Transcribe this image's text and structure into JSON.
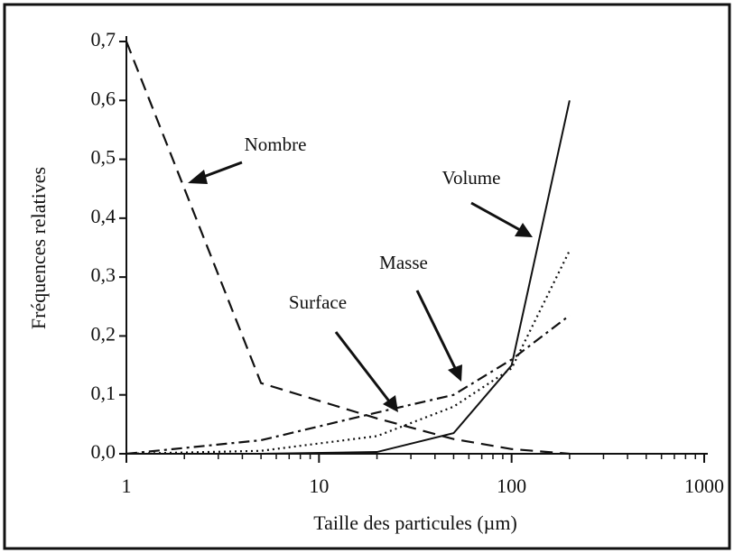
{
  "chart_data": {
    "type": "line",
    "x_label": "Taille des particules (µm)",
    "y_label": "Fréquences relatives",
    "log_x": true,
    "xlim": [
      1,
      1000
    ],
    "xticks": [
      1,
      10,
      100,
      1000
    ],
    "xminorticks": [
      2,
      3,
      4,
      5,
      6,
      7,
      8,
      9,
      20,
      30,
      40,
      50,
      60,
      70,
      80,
      90,
      200,
      300,
      400,
      500,
      600,
      700,
      800,
      900
    ],
    "ylim": [
      0,
      0.7
    ],
    "yticks": [
      {
        "value": 0,
        "label": "0,0"
      },
      {
        "value": 0.1,
        "label": "0,1"
      },
      {
        "value": 0.2,
        "label": "0,2"
      },
      {
        "value": 0.3,
        "label": "0,3"
      },
      {
        "value": 0.4,
        "label": "0,4"
      },
      {
        "value": 0.5,
        "label": "0,5"
      },
      {
        "value": 0.6,
        "label": "0,6"
      },
      {
        "value": 0.7,
        "label": "0,7"
      }
    ],
    "x": [
      1,
      5,
      20,
      50,
      100,
      200
    ],
    "series": [
      {
        "name": "Nombre",
        "color": "#111111",
        "style": "dashed",
        "values": [
          0.7,
          0.12,
          0.06,
          0.025,
          0.008,
          0
        ]
      },
      {
        "name": "Surface",
        "color": "#111111",
        "style": "dashdot",
        "values": [
          0,
          0.023,
          0.07,
          0.1,
          0.16,
          0.235
        ]
      },
      {
        "name": "Masse",
        "color": "#111111",
        "style": "dotted",
        "values": [
          0,
          0.005,
          0.03,
          0.08,
          0.145,
          0.345
        ]
      },
      {
        "name": "Volume",
        "color": "#111111",
        "style": "solid",
        "values": [
          0,
          0,
          0.003,
          0.035,
          0.15,
          0.6
        ]
      }
    ]
  }
}
